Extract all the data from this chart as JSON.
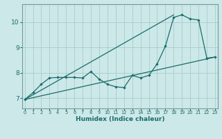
{
  "xlabel": "Humidex (Indice chaleur)",
  "background_color": "#cce8e8",
  "grid_color": "#aacccc",
  "line_color": "#1a6b6b",
  "x_ticks": [
    0,
    1,
    2,
    3,
    4,
    5,
    6,
    7,
    8,
    9,
    10,
    11,
    12,
    13,
    14,
    15,
    16,
    17,
    18,
    19,
    20,
    21,
    22,
    23
  ],
  "y_ticks": [
    7,
    8,
    9,
    10
  ],
  "ylim": [
    6.6,
    10.7
  ],
  "xlim": [
    -0.3,
    23.3
  ],
  "data_x": [
    0,
    1,
    2,
    3,
    4,
    5,
    6,
    7,
    8,
    9,
    10,
    11,
    12,
    13,
    14,
    15,
    16,
    17,
    18,
    19,
    20,
    21,
    22,
    23
  ],
  "data_y": [
    6.95,
    7.22,
    7.55,
    7.8,
    7.82,
    7.82,
    7.82,
    7.8,
    8.05,
    7.75,
    7.55,
    7.45,
    7.42,
    7.9,
    7.8,
    7.9,
    8.35,
    9.05,
    10.18,
    10.28,
    10.12,
    10.08,
    8.58,
    8.62
  ],
  "trend1_x": [
    0,
    23
  ],
  "trend1_y": [
    6.95,
    8.62
  ],
  "trend2_x": [
    0,
    18
  ],
  "trend2_y": [
    6.95,
    10.28
  ]
}
